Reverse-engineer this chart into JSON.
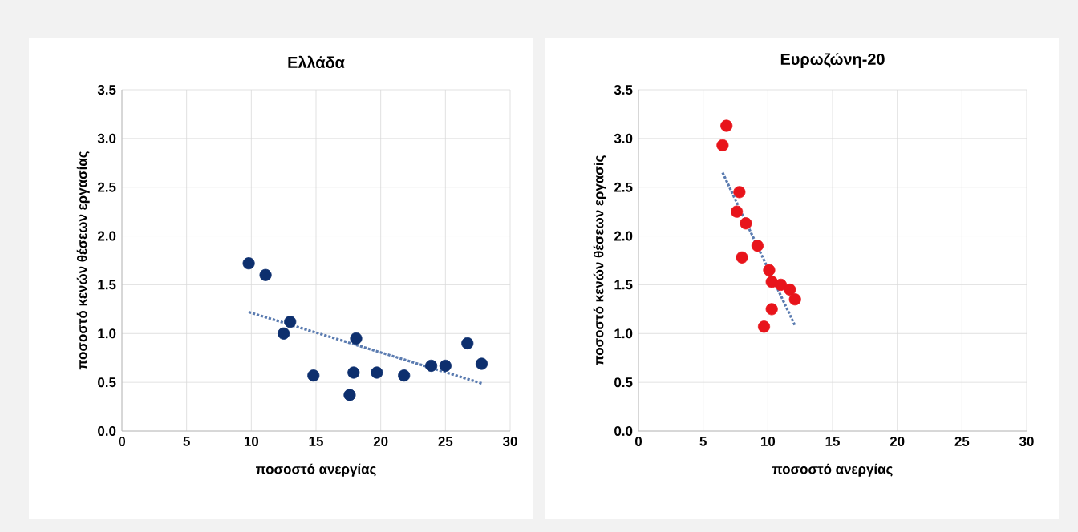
{
  "chart_data": [
    {
      "type": "scatter",
      "title": "Ελλάδα",
      "xlabel": "ποσοστό ανεργίας",
      "ylabel": "ποσοστό κενών θέσεων εργασίας",
      "xlim": [
        0,
        30
      ],
      "ylim": [
        0,
        3.5
      ],
      "xticks": [
        0,
        5,
        10,
        15,
        20,
        25,
        30
      ],
      "yticks": [
        {
          "value": 0,
          "label": "0.0"
        },
        {
          "value": 0.5,
          "label": "0.5"
        },
        {
          "value": 1,
          "label": "1.0"
        },
        {
          "value": 1.5,
          "label": "1.5"
        },
        {
          "value": 2,
          "label": "2.0"
        },
        {
          "value": 2.5,
          "label": "2.5"
        },
        {
          "value": 3,
          "label": "3.0"
        },
        {
          "value": 3.5,
          "label": "3.5"
        }
      ],
      "grid": true,
      "series": [
        {
          "marker": "circle",
          "color": "#0d2f6e",
          "x": [
            9.8,
            11.1,
            12.5,
            13.0,
            14.8,
            17.6,
            17.9,
            18.1,
            19.7,
            21.8,
            23.9,
            25.0,
            26.7,
            27.8
          ],
          "values": [
            1.72,
            1.6,
            1.0,
            1.12,
            0.57,
            0.37,
            0.6,
            0.95,
            0.6,
            0.57,
            0.67,
            0.67,
            0.9,
            0.69
          ]
        },
        {
          "type": "line",
          "color": "#5a7bb0",
          "marker": "none",
          "line_style": "dotted",
          "x": [
            9.8,
            27.8
          ],
          "values": [
            1.22,
            0.49
          ]
        }
      ]
    },
    {
      "type": "scatter",
      "title": "Ευρωζώνη-20",
      "xlabel": "ποσοστό ανεργίας",
      "ylabel": "ποσοστό κενών θέσεων εργασiς",
      "xlim": [
        0,
        30
      ],
      "ylim": [
        0,
        3.5
      ],
      "xticks": [
        0,
        5,
        10,
        15,
        20,
        25,
        30
      ],
      "yticks": [
        {
          "value": 0,
          "label": "0.0"
        },
        {
          "value": 0.5,
          "label": "0.5"
        },
        {
          "value": 1,
          "label": "1.0"
        },
        {
          "value": 1.5,
          "label": "1.5"
        },
        {
          "value": 2,
          "label": "2.0"
        },
        {
          "value": 2.5,
          "label": "2.5"
        },
        {
          "value": 3,
          "label": "3.0"
        },
        {
          "value": 3.5,
          "label": "3.5"
        }
      ],
      "grid": true,
      "series": [
        {
          "marker": "circle",
          "color": "#e8141b",
          "x": [
            6.5,
            6.8,
            7.6,
            7.8,
            8.0,
            8.3,
            9.2,
            9.7,
            10.1,
            10.3,
            10.3,
            11.0,
            11.7,
            12.1
          ],
          "values": [
            2.93,
            3.13,
            2.25,
            2.45,
            1.78,
            2.13,
            1.9,
            1.07,
            1.65,
            1.25,
            1.53,
            1.5,
            1.45,
            1.35
          ]
        },
        {
          "type": "line",
          "color": "#5a7bb0",
          "marker": "none",
          "line_style": "dotted",
          "x": [
            6.5,
            12.1
          ],
          "values": [
            2.65,
            1.08
          ]
        }
      ]
    }
  ]
}
